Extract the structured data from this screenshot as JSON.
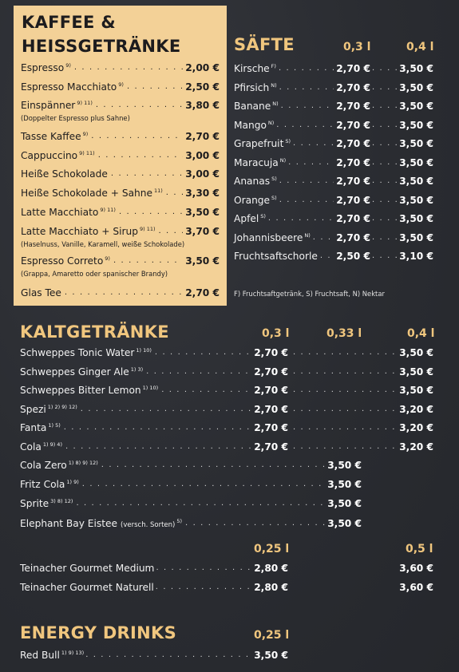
{
  "coffee": {
    "title_line1": "KAFFEE &",
    "title_line2": "HEISSGETRÄNKE",
    "items": [
      {
        "name": "Espresso",
        "sup": "9)",
        "price": "2,00 €",
        "note": ""
      },
      {
        "name": "Espresso Macchiato",
        "sup": "9)",
        "price": "2,50 €",
        "note": ""
      },
      {
        "name": "Einspänner",
        "sup": "9) 11)",
        "price": "3,80 €",
        "note": "(Doppelter Espresso plus Sahne)"
      },
      {
        "name": "Tasse Kaffee",
        "sup": "9)",
        "price": "2,70 €",
        "note": ""
      },
      {
        "name": "Cappuccino",
        "sup": "9) 11)",
        "price": "3,00 €",
        "note": ""
      },
      {
        "name": "Heiße Schokolade",
        "sup": "",
        "price": "3,00 €",
        "note": ""
      },
      {
        "name": "Heiße Schokolade + Sahne",
        "sup": "11)",
        "price": "3,30 €",
        "note": ""
      },
      {
        "name": "Latte Macchiato",
        "sup": "9) 11)",
        "price": "3,50 €",
        "note": ""
      },
      {
        "name": "Latte Macchiato + Sirup",
        "sup": "9) 11)",
        "price": "3,70 €",
        "note": "(Haselnuss, Vanille, Karamell, weiße Schokolade)"
      },
      {
        "name": "Espresso Correto",
        "sup": "9)",
        "price": "3,50 €",
        "note": "(Grappa, Amaretto oder spanischer Brandy)"
      },
      {
        "name": "Glas Tee",
        "sup": "",
        "price": "2,70 €",
        "note": ""
      }
    ]
  },
  "juices": {
    "title": "SÄFTE",
    "col1": "0,3 l",
    "col2": "0,4 l",
    "items": [
      {
        "name": "Kirsche",
        "sup": "F)",
        "p1": "2,70 €",
        "p2": "3,50 €"
      },
      {
        "name": "Pfirsich",
        "sup": "N)",
        "p1": "2,70 €",
        "p2": "3,50 €"
      },
      {
        "name": "Banane",
        "sup": "N)",
        "p1": "2,70 €",
        "p2": "3,50 €"
      },
      {
        "name": "Mango",
        "sup": "N)",
        "p1": "2,70 €",
        "p2": "3,50 €"
      },
      {
        "name": "Grapefruit",
        "sup": "S)",
        "p1": "2,70 €",
        "p2": "3,50 €"
      },
      {
        "name": "Maracuja",
        "sup": "N)",
        "p1": "2,70 €",
        "p2": "3,50 €"
      },
      {
        "name": "Ananas",
        "sup": "S)",
        "p1": "2,70 €",
        "p2": "3,50 €"
      },
      {
        "name": "Orange",
        "sup": "S)",
        "p1": "2,70 €",
        "p2": "3,50 €"
      },
      {
        "name": "Apfel",
        "sup": "S)",
        "p1": "2,70 €",
        "p2": "3,50 €"
      },
      {
        "name": "Johannisbeere",
        "sup": "N)",
        "p1": "2,70 €",
        "p2": "3,50 €"
      },
      {
        "name": "Fruchtsaftschorle",
        "sup": "",
        "p1": "2,50 €",
        "p2": "3,10 €"
      }
    ],
    "footnote": "F) Fruchtsaftgetränk, S) Fruchtsaft, N) Nektar"
  },
  "cold": {
    "title": "KALTGETRÄNKE",
    "col1": "0,3 l",
    "col2": "0,33 l",
    "col3": "0,4 l",
    "items_two": [
      {
        "name": "Schweppes Tonic Water",
        "sup": "1) 10)",
        "p1": "2,70 €",
        "p2": "3,50 €"
      },
      {
        "name": "Schweppes Ginger Ale",
        "sup": "1) 3)",
        "p1": "2,70 €",
        "p2": "3,50 €"
      },
      {
        "name": "Schweppes Bitter Lemon",
        "sup": "1) 10)",
        "p1": "2,70 €",
        "p2": "3,50 €"
      },
      {
        "name": "Spezi",
        "sup": "1) 2) 9) 12)",
        "p1": "2,70 €",
        "p2": "3,20 €"
      },
      {
        "name": "Fanta",
        "sup": "1) 5)",
        "p1": "2,70 €",
        "p2": "3,20 €"
      },
      {
        "name": "Cola",
        "sup": "1) 9) 4)",
        "p1": "2,70 €",
        "p2": "3,20 €"
      }
    ],
    "items_mid": [
      {
        "name": "Cola Zero",
        "sup": "1) 8) 9) 12)",
        "price": "3,50 €",
        "extra": ""
      },
      {
        "name": "Fritz Cola",
        "sup": "1) 9)",
        "price": "3,50 €",
        "extra": ""
      },
      {
        "name": "Sprite",
        "sup": "3) 8) 12)",
        "price": "3,50 €",
        "extra": ""
      },
      {
        "name": "Elephant Bay Eistee",
        "sup": "5)",
        "price": "3,50 €",
        "extra": "(versch. Sorten)"
      }
    ],
    "water_col1": "0,25 l",
    "water_col2": "0,5 l",
    "water": [
      {
        "name": "Teinacher Gourmet Medium",
        "p1": "2,80 €",
        "p2": "3,60 €"
      },
      {
        "name": "Teinacher Gourmet Naturell",
        "p1": "2,80 €",
        "p2": "3,60 €"
      }
    ]
  },
  "energy": {
    "title": "ENERGY DRINKS",
    "col1": "0,25 l",
    "items": [
      {
        "name": "Red Bull",
        "sup": "1) 9) 13)",
        "price": "3,50 €"
      }
    ]
  },
  "colors": {
    "background": "#2b2d33",
    "panel": "#f3d197",
    "accent": "#f0c67e",
    "dark_text": "#1d1c1e"
  }
}
